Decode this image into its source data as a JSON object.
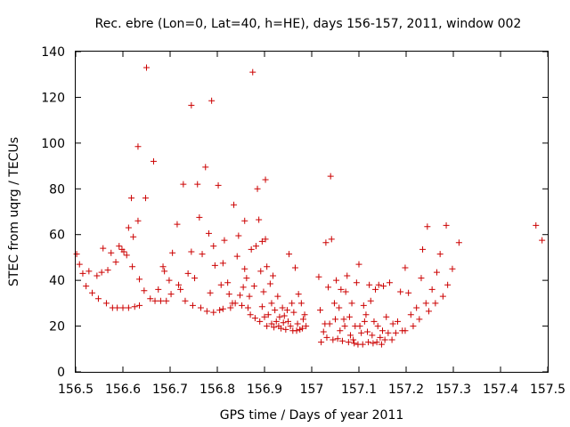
{
  "chart_data": {
    "type": "scatter",
    "title": "Rec. ebre (Lon=0, Lat=40, h=HE), days 156-157, 2011, window 002",
    "xlabel": "GPS time / Days of year 2011",
    "ylabel": "STEC from uqrg / TECUs",
    "xlim": [
      156.5,
      157.5
    ],
    "ylim": [
      0,
      140
    ],
    "xticks": [
      156.5,
      156.6,
      156.7,
      156.8,
      156.9,
      157.0,
      157.1,
      157.2,
      157.3,
      157.4,
      157.5
    ],
    "xtick_labels": [
      "156.5",
      "156.6",
      "156.7",
      "156.8",
      "156.9",
      "157",
      "157.1",
      "157.2",
      "157.3",
      "157.4",
      "157.5"
    ],
    "yticks": [
      0,
      20,
      40,
      60,
      80,
      100,
      120,
      140
    ],
    "ytick_labels": [
      "0",
      "20",
      "40",
      "60",
      "80",
      "100",
      "120",
      "140"
    ],
    "grid": false,
    "legend": "none",
    "marker": "plus",
    "color": "#cc0000",
    "series": [
      {
        "name": "STEC",
        "points": [
          [
            156.502,
            51.5
          ],
          [
            156.508,
            47
          ],
          [
            156.515,
            43
          ],
          [
            156.522,
            37.5
          ],
          [
            156.528,
            44
          ],
          [
            156.535,
            34.5
          ],
          [
            156.545,
            42
          ],
          [
            156.548,
            32
          ],
          [
            156.555,
            43.5
          ],
          [
            156.558,
            54
          ],
          [
            156.565,
            30
          ],
          [
            156.568,
            44.5
          ],
          [
            156.575,
            52
          ],
          [
            156.578,
            28
          ],
          [
            156.585,
            48
          ],
          [
            156.588,
            28
          ],
          [
            156.592,
            55
          ],
          [
            156.598,
            53.5
          ],
          [
            156.6,
            28
          ],
          [
            156.602,
            52.5
          ],
          [
            156.608,
            51
          ],
          [
            156.612,
            63
          ],
          [
            156.612,
            28
          ],
          [
            156.618,
            76
          ],
          [
            156.62,
            46
          ],
          [
            156.622,
            59
          ],
          [
            156.625,
            28.5
          ],
          [
            156.632,
            66
          ],
          [
            156.632,
            98.5
          ],
          [
            156.635,
            40.5
          ],
          [
            156.635,
            29
          ],
          [
            156.645,
            35.5
          ],
          [
            156.648,
            76
          ],
          [
            156.65,
            133
          ],
          [
            156.658,
            32
          ],
          [
            156.665,
            92
          ],
          [
            156.668,
            31
          ],
          [
            156.675,
            36
          ],
          [
            156.68,
            31
          ],
          [
            156.685,
            46
          ],
          [
            156.688,
            44
          ],
          [
            156.692,
            31
          ],
          [
            156.698,
            40
          ],
          [
            156.702,
            34
          ],
          [
            156.705,
            52
          ],
          [
            156.715,
            64.5
          ],
          [
            156.718,
            38
          ],
          [
            156.722,
            36
          ],
          [
            156.728,
            82
          ],
          [
            156.732,
            31
          ],
          [
            156.738,
            43
          ],
          [
            156.745,
            116.5
          ],
          [
            156.745,
            52.5
          ],
          [
            156.748,
            29
          ],
          [
            156.752,
            41
          ],
          [
            156.758,
            82
          ],
          [
            156.762,
            67.5
          ],
          [
            156.765,
            28
          ],
          [
            156.768,
            51.5
          ],
          [
            156.775,
            89.5
          ],
          [
            156.778,
            26.5
          ],
          [
            156.782,
            60.5
          ],
          [
            156.785,
            34.5
          ],
          [
            156.788,
            118.5
          ],
          [
            156.792,
            26
          ],
          [
            156.792,
            55
          ],
          [
            156.795,
            46.5
          ],
          [
            156.802,
            81.5
          ],
          [
            156.805,
            27
          ],
          [
            156.808,
            38
          ],
          [
            156.812,
            47.5
          ],
          [
            156.812,
            27.5
          ],
          [
            156.815,
            57.5
          ],
          [
            156.822,
            39
          ],
          [
            156.825,
            34
          ],
          [
            156.828,
            28
          ],
          [
            156.832,
            30
          ],
          [
            156.835,
            73
          ],
          [
            156.838,
            30
          ],
          [
            156.842,
            50.5
          ],
          [
            156.845,
            59.5
          ],
          [
            156.848,
            33.5
          ],
          [
            156.852,
            29
          ],
          [
            156.855,
            37
          ],
          [
            156.858,
            66
          ],
          [
            156.858,
            45
          ],
          [
            156.862,
            41
          ],
          [
            156.865,
            28
          ],
          [
            156.868,
            33
          ],
          [
            156.87,
            25
          ],
          [
            156.872,
            53.5
          ],
          [
            156.875,
            131
          ],
          [
            156.878,
            37.5
          ],
          [
            156.88,
            23.5
          ],
          [
            156.882,
            55
          ],
          [
            156.885,
            80
          ],
          [
            156.888,
            66.5
          ],
          [
            156.89,
            22
          ],
          [
            156.892,
            44
          ],
          [
            156.895,
            57
          ],
          [
            156.895,
            28.5
          ],
          [
            156.898,
            35
          ],
          [
            156.9,
            24
          ],
          [
            156.902,
            84
          ],
          [
            156.902,
            58
          ],
          [
            156.905,
            46
          ],
          [
            156.905,
            20
          ],
          [
            156.908,
            25
          ],
          [
            156.912,
            38.5
          ],
          [
            156.915,
            30
          ],
          [
            156.915,
            21
          ],
          [
            156.918,
            42
          ],
          [
            156.92,
            19.5
          ],
          [
            156.922,
            27
          ],
          [
            156.925,
            22
          ],
          [
            156.928,
            33
          ],
          [
            156.93,
            20
          ],
          [
            156.932,
            24
          ],
          [
            156.935,
            19
          ],
          [
            156.938,
            28
          ],
          [
            156.94,
            21.5
          ],
          [
            156.942,
            24.5
          ],
          [
            156.945,
            18.5
          ],
          [
            156.948,
            27
          ],
          [
            156.95,
            22
          ],
          [
            156.952,
            51.5
          ],
          [
            156.955,
            20
          ],
          [
            156.958,
            30
          ],
          [
            156.96,
            18
          ],
          [
            156.962,
            26
          ],
          [
            156.965,
            45.5
          ],
          [
            156.968,
            18
          ],
          [
            156.97,
            21
          ],
          [
            156.972,
            34
          ],
          [
            156.975,
            18.5
          ],
          [
            156.978,
            30
          ],
          [
            156.98,
            19
          ],
          [
            156.982,
            23
          ],
          [
            156.985,
            25
          ],
          [
            156.988,
            20
          ],
          [
            157.015,
            41.5
          ],
          [
            157.018,
            27
          ],
          [
            157.02,
            13
          ],
          [
            157.025,
            17.5
          ],
          [
            157.028,
            21
          ],
          [
            157.03,
            56.5
          ],
          [
            157.032,
            15
          ],
          [
            157.035,
            37
          ],
          [
            157.038,
            21
          ],
          [
            157.04,
            85.5
          ],
          [
            157.042,
            58
          ],
          [
            157.045,
            14
          ],
          [
            157.048,
            30
          ],
          [
            157.05,
            23
          ],
          [
            157.052,
            40
          ],
          [
            157.055,
            14.5
          ],
          [
            157.058,
            28
          ],
          [
            157.06,
            18
          ],
          [
            157.062,
            36
          ],
          [
            157.065,
            13.5
          ],
          [
            157.068,
            23
          ],
          [
            157.07,
            20
          ],
          [
            157.072,
            35
          ],
          [
            157.075,
            42
          ],
          [
            157.078,
            13
          ],
          [
            157.08,
            24
          ],
          [
            157.082,
            16
          ],
          [
            157.085,
            30
          ],
          [
            157.088,
            14
          ],
          [
            157.09,
            12.5
          ],
          [
            157.092,
            20
          ],
          [
            157.095,
            39
          ],
          [
            157.098,
            12
          ],
          [
            157.1,
            47
          ],
          [
            157.102,
            20
          ],
          [
            157.105,
            17
          ],
          [
            157.108,
            12
          ],
          [
            157.11,
            29
          ],
          [
            157.112,
            22
          ],
          [
            157.115,
            25
          ],
          [
            157.118,
            17.5
          ],
          [
            157.12,
            13
          ],
          [
            157.122,
            38
          ],
          [
            157.125,
            31
          ],
          [
            157.128,
            16
          ],
          [
            157.13,
            12.5
          ],
          [
            157.132,
            22
          ],
          [
            157.135,
            36
          ],
          [
            157.138,
            13
          ],
          [
            157.14,
            20
          ],
          [
            157.142,
            38
          ],
          [
            157.145,
            15
          ],
          [
            157.148,
            12
          ],
          [
            157.15,
            18
          ],
          [
            157.152,
            37.5
          ],
          [
            157.155,
            14
          ],
          [
            157.158,
            24
          ],
          [
            157.162,
            17
          ],
          [
            157.165,
            39
          ],
          [
            157.17,
            14
          ],
          [
            157.172,
            21
          ],
          [
            157.178,
            17
          ],
          [
            157.182,
            22
          ],
          [
            157.188,
            35
          ],
          [
            157.192,
            18
          ],
          [
            157.198,
            45.5
          ],
          [
            157.198,
            18
          ],
          [
            157.205,
            34.5
          ],
          [
            157.21,
            25
          ],
          [
            157.215,
            20
          ],
          [
            157.222,
            28
          ],
          [
            157.228,
            23
          ],
          [
            157.232,
            41
          ],
          [
            157.235,
            53.5
          ],
          [
            157.242,
            30
          ],
          [
            157.245,
            63.5
          ],
          [
            157.248,
            26.5
          ],
          [
            157.255,
            36
          ],
          [
            157.262,
            30
          ],
          [
            157.265,
            43.5
          ],
          [
            157.272,
            51.5
          ],
          [
            157.278,
            33
          ],
          [
            157.285,
            64
          ],
          [
            157.288,
            38
          ],
          [
            157.298,
            45
          ],
          [
            157.312,
            56.5
          ],
          [
            157.475,
            64
          ],
          [
            157.488,
            57.5
          ]
        ]
      }
    ]
  }
}
